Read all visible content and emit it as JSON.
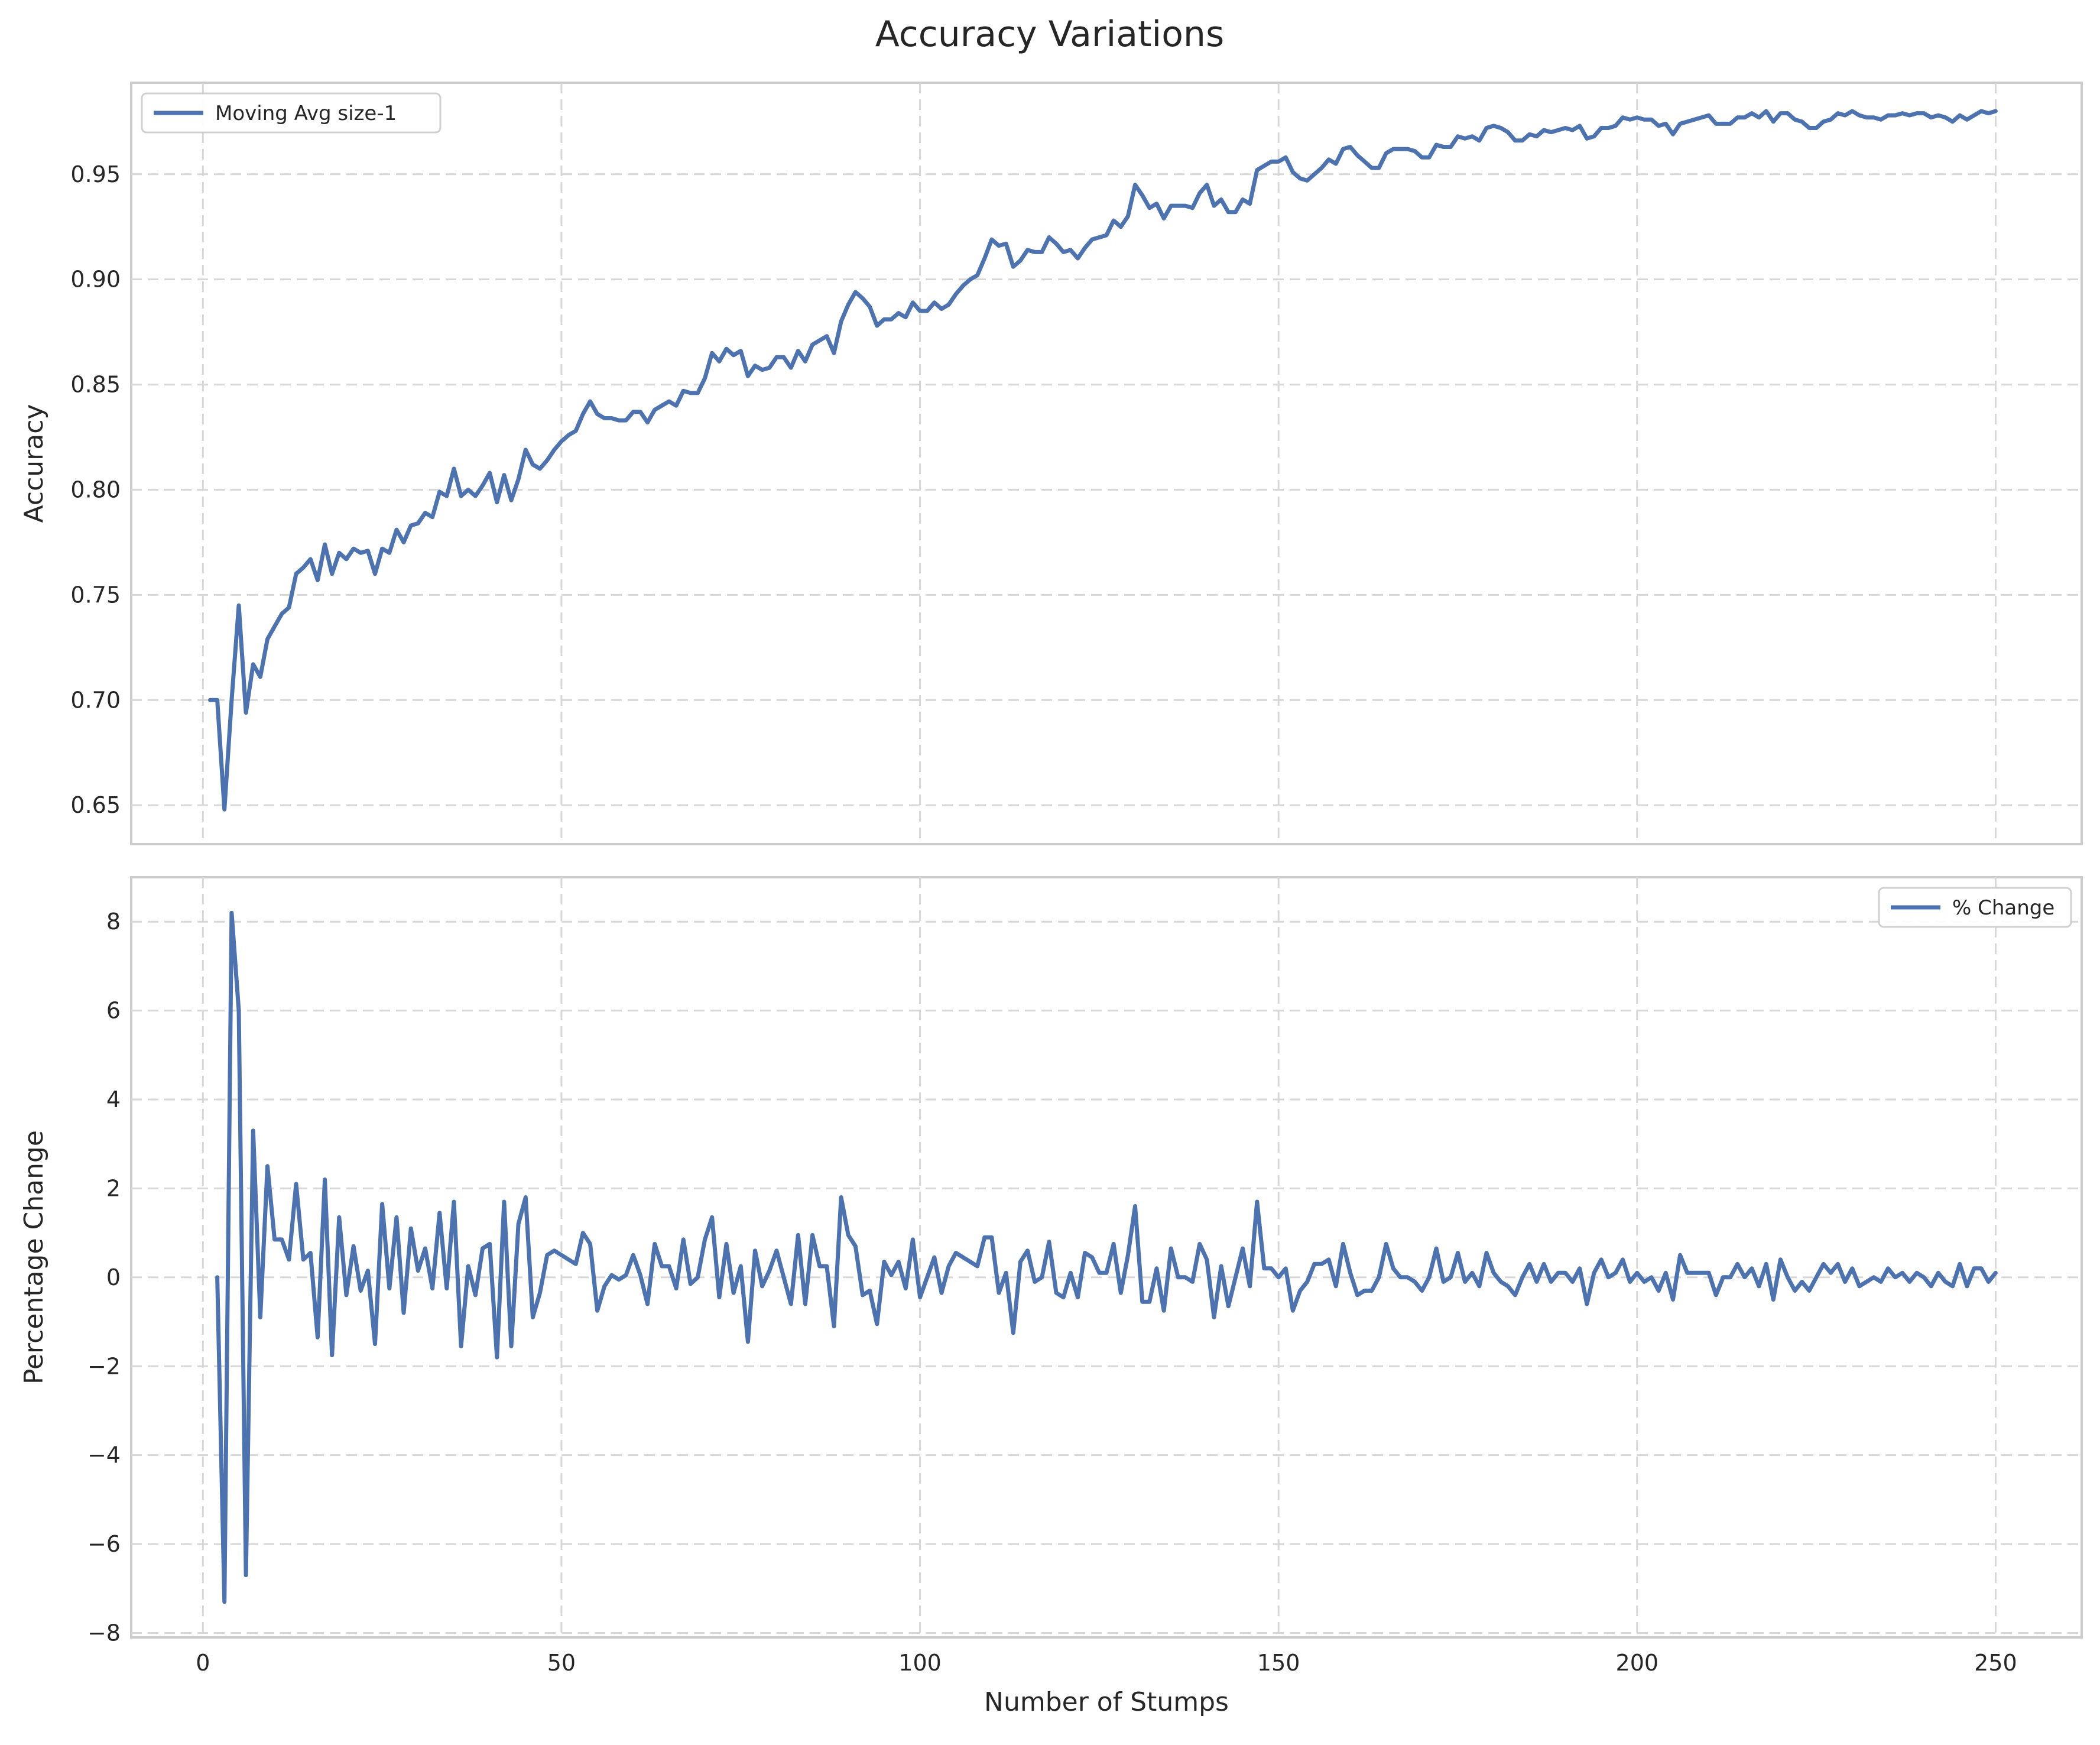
{
  "figure": {
    "title": "Accuracy Variations",
    "line_color": "#4c72b0",
    "grid": true,
    "grid_style": "dashed"
  },
  "chart_data": [
    {
      "type": "line",
      "title": "",
      "xlabel": "",
      "ylabel": "Accuracy",
      "xlim": [
        -10,
        262
      ],
      "ylim": [
        0.6315,
        0.9935
      ],
      "xticks": [
        0,
        50,
        100,
        150,
        200,
        250
      ],
      "yticks": [
        0.65,
        0.7,
        0.75,
        0.8,
        0.85,
        0.9,
        0.95
      ],
      "ytick_labels": [
        "0.65",
        "0.70",
        "0.75",
        "0.80",
        "0.85",
        "0.90",
        "0.95"
      ],
      "legend": "upper-left",
      "series": [
        {
          "name": "Moving Avg size-1",
          "color": "#4c72b0",
          "x_start": 1,
          "x_step": 1,
          "values": [
            0.7,
            0.7,
            0.648,
            0.7,
            0.745,
            0.694,
            0.717,
            0.711,
            0.729,
            0.735,
            0.741,
            0.744,
            0.76,
            0.763,
            0.767,
            0.757,
            0.774,
            0.76,
            0.77,
            0.767,
            0.772,
            0.77,
            0.771,
            0.76,
            0.772,
            0.77,
            0.781,
            0.775,
            0.783,
            0.784,
            0.789,
            0.787,
            0.799,
            0.797,
            0.81,
            0.797,
            0.8,
            0.797,
            0.802,
            0.808,
            0.794,
            0.807,
            0.795,
            0.805,
            0.819,
            0.812,
            0.81,
            0.814,
            0.819,
            0.823,
            0.826,
            0.828,
            0.836,
            0.842,
            0.836,
            0.834,
            0.834,
            0.833,
            0.833,
            0.837,
            0.837,
            0.832,
            0.838,
            0.84,
            0.842,
            0.84,
            0.847,
            0.846,
            0.846,
            0.853,
            0.865,
            0.861,
            0.867,
            0.864,
            0.866,
            0.854,
            0.859,
            0.857,
            0.858,
            0.863,
            0.863,
            0.858,
            0.866,
            0.861,
            0.869,
            0.871,
            0.873,
            0.865,
            0.88,
            0.888,
            0.894,
            0.891,
            0.887,
            0.878,
            0.881,
            0.881,
            0.884,
            0.882,
            0.889,
            0.885,
            0.885,
            0.889,
            0.886,
            0.888,
            0.893,
            0.897,
            0.9,
            0.902,
            0.91,
            0.919,
            0.916,
            0.917,
            0.906,
            0.909,
            0.914,
            0.913,
            0.913,
            0.92,
            0.917,
            0.913,
            0.914,
            0.91,
            0.915,
            0.919,
            0.92,
            0.921,
            0.928,
            0.925,
            0.93,
            0.945,
            0.94,
            0.934,
            0.936,
            0.929,
            0.935,
            0.935,
            0.935,
            0.934,
            0.941,
            0.945,
            0.935,
            0.938,
            0.932,
            0.932,
            0.938,
            0.936,
            0.952,
            0.954,
            0.956,
            0.956,
            0.958,
            0.951,
            0.948,
            0.947,
            0.95,
            0.953,
            0.957,
            0.955,
            0.962,
            0.963,
            0.959,
            0.956,
            0.953,
            0.953,
            0.96,
            0.962,
            0.962,
            0.962,
            0.961,
            0.958,
            0.958,
            0.964,
            0.963,
            0.963,
            0.968,
            0.967,
            0.968,
            0.966,
            0.972,
            0.973,
            0.972,
            0.97,
            0.966,
            0.966,
            0.969,
            0.968,
            0.971,
            0.97,
            0.971,
            0.972,
            0.971,
            0.973,
            0.967,
            0.968,
            0.972,
            0.972,
            0.973,
            0.977,
            0.976,
            0.977,
            0.976,
            0.976,
            0.973,
            0.974,
            0.969,
            0.974,
            0.975,
            0.976,
            0.977,
            0.978,
            0.974,
            0.974,
            0.974,
            0.977,
            0.977,
            0.979,
            0.977,
            0.98,
            0.975,
            0.979,
            0.979,
            0.976,
            0.975,
            0.972,
            0.972,
            0.975,
            0.976,
            0.979,
            0.978,
            0.98,
            0.978,
            0.977,
            0.977,
            0.976,
            0.978,
            0.978,
            0.979,
            0.978,
            0.979,
            0.979,
            0.977,
            0.978,
            0.977,
            0.975,
            0.978,
            0.976,
            0.978,
            0.98,
            0.979,
            0.98
          ]
        }
      ]
    },
    {
      "type": "line",
      "title": "",
      "xlabel": "Number of Stumps",
      "ylabel": "Percentage Change",
      "xlim": [
        -10,
        262
      ],
      "ylim": [
        -8.1,
        9.0
      ],
      "xticks": [
        0,
        50,
        100,
        150,
        200,
        250
      ],
      "xtick_labels": [
        "0",
        "50",
        "100",
        "150",
        "200",
        "250"
      ],
      "yticks": [
        -8,
        -6,
        -4,
        -2,
        0,
        2,
        4,
        6,
        8
      ],
      "ytick_labels": [
        "−8",
        "−6",
        "−4",
        "−2",
        "0",
        "2",
        "4",
        "6",
        "8"
      ],
      "legend": "upper-right",
      "series": [
        {
          "name": "% Change",
          "color": "#4c72b0",
          "x_start": 2,
          "x_step": 1,
          "values": [
            0.0,
            -7.3,
            8.2,
            6.0,
            -6.7,
            3.3,
            -0.9,
            2.5,
            0.85,
            0.85,
            0.4,
            2.1,
            0.4,
            0.55,
            -1.35,
            2.2,
            -1.75,
            1.35,
            -0.4,
            0.7,
            -0.3,
            0.15,
            -1.5,
            1.65,
            -0.25,
            1.35,
            -0.8,
            1.1,
            0.15,
            0.65,
            -0.25,
            1.45,
            -0.25,
            1.7,
            -1.55,
            0.25,
            -0.4,
            0.65,
            0.75,
            -1.8,
            1.7,
            -1.55,
            1.2,
            1.8,
            -0.9,
            -0.35,
            0.5,
            0.6,
            0.5,
            0.4,
            0.3,
            1.0,
            0.75,
            -0.75,
            -0.2,
            0.05,
            -0.05,
            0.05,
            0.5,
            0.05,
            -0.6,
            0.75,
            0.25,
            0.25,
            -0.25,
            0.85,
            -0.15,
            0.0,
            0.85,
            1.35,
            -0.45,
            0.75,
            -0.35,
            0.25,
            -1.45,
            0.6,
            -0.2,
            0.15,
            0.6,
            0.0,
            -0.6,
            0.95,
            -0.6,
            0.95,
            0.25,
            0.25,
            -1.1,
            1.8,
            0.95,
            0.7,
            -0.4,
            -0.3,
            -1.05,
            0.35,
            0.05,
            0.35,
            -0.25,
            0.85,
            -0.45,
            0.0,
            0.45,
            -0.35,
            0.25,
            0.55,
            0.45,
            0.35,
            0.25,
            0.9,
            0.9,
            -0.35,
            0.1,
            -1.25,
            0.35,
            0.6,
            -0.1,
            0.0,
            0.8,
            -0.35,
            -0.45,
            0.1,
            -0.45,
            0.55,
            0.45,
            0.1,
            0.1,
            0.75,
            -0.35,
            0.5,
            1.6,
            -0.55,
            -0.55,
            0.2,
            -0.75,
            0.65,
            0.0,
            0.0,
            -0.1,
            0.75,
            0.4,
            -0.9,
            0.25,
            -0.65,
            0.0,
            0.65,
            -0.2,
            1.7,
            0.2,
            0.2,
            0.0,
            0.2,
            -0.75,
            -0.3,
            -0.1,
            0.3,
            0.3,
            0.4,
            -0.2,
            0.75,
            0.1,
            -0.4,
            -0.3,
            -0.3,
            0.0,
            0.75,
            0.2,
            0.0,
            0.0,
            -0.1,
            -0.3,
            0.0,
            0.65,
            -0.1,
            0.0,
            0.55,
            -0.1,
            0.1,
            -0.2,
            0.55,
            0.1,
            -0.1,
            -0.2,
            -0.4,
            0.0,
            0.3,
            -0.1,
            0.3,
            -0.1,
            0.1,
            0.1,
            -0.1,
            0.2,
            -0.6,
            0.1,
            0.4,
            0.0,
            0.1,
            0.4,
            -0.1,
            0.1,
            -0.1,
            0.0,
            -0.3,
            0.1,
            -0.5,
            0.5,
            0.1,
            0.1,
            0.1,
            0.1,
            -0.4,
            0.0,
            0.0,
            0.3,
            0.0,
            0.2,
            -0.2,
            0.3,
            -0.5,
            0.4,
            0.0,
            -0.3,
            -0.1,
            -0.3,
            0.0,
            0.3,
            0.1,
            0.3,
            -0.1,
            0.2,
            -0.2,
            -0.1,
            0.0,
            -0.1,
            0.2,
            0.0,
            0.1,
            -0.1,
            0.1,
            0.0,
            -0.2,
            0.1,
            -0.1,
            -0.2,
            0.3,
            -0.2,
            0.2,
            0.2,
            -0.1,
            0.1
          ]
        }
      ]
    }
  ]
}
